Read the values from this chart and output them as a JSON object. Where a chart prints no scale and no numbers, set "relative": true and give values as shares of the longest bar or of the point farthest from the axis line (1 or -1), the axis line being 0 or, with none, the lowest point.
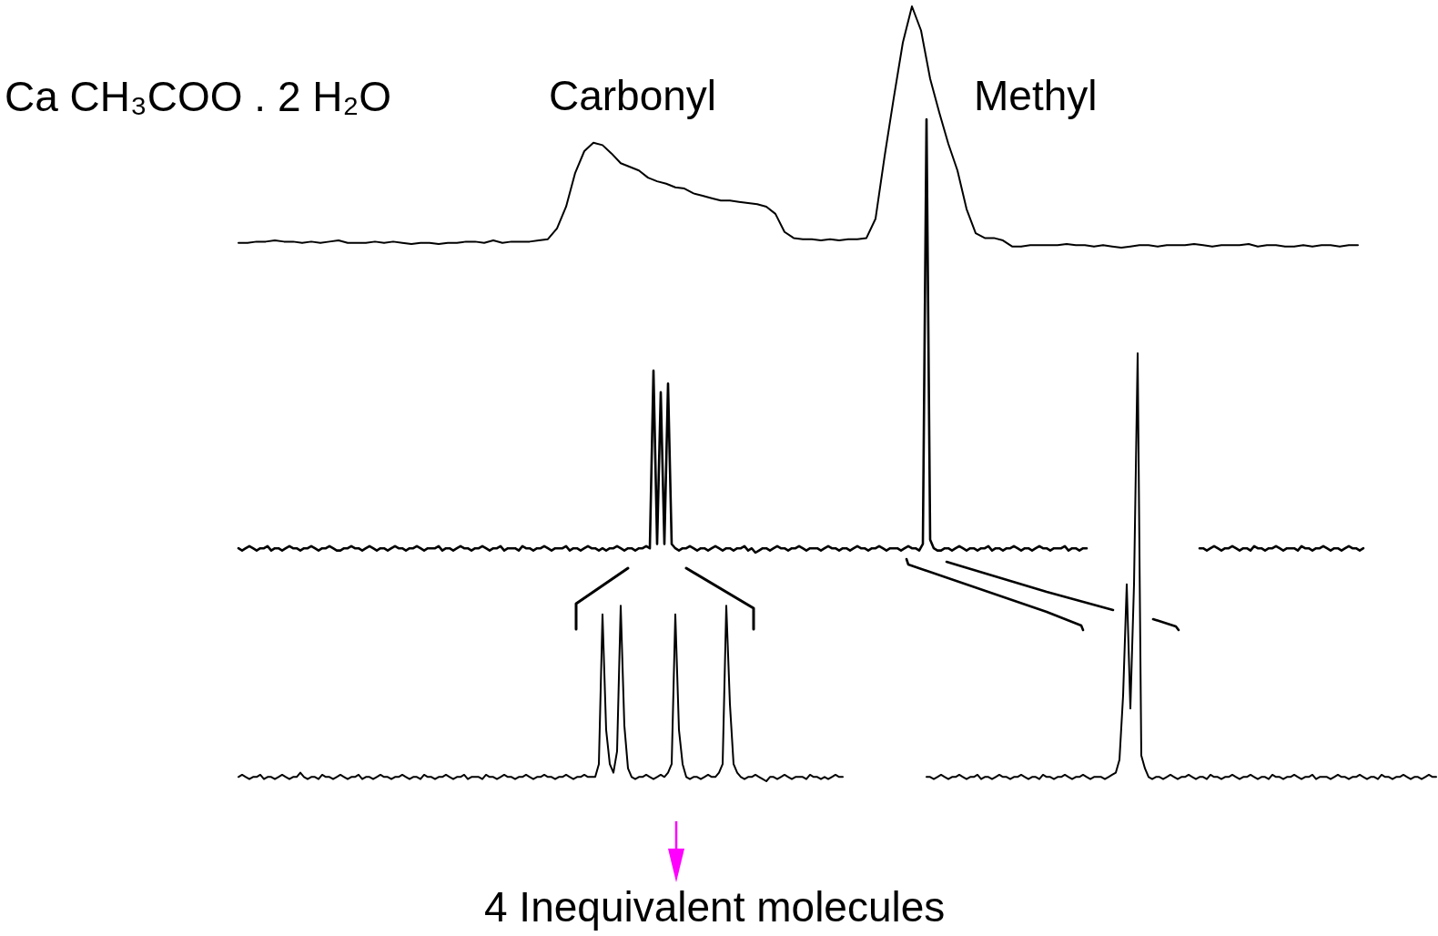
{
  "chart_data": [
    {
      "type": "line",
      "relative": true,
      "title": "Ca CH₃COO . 2 H₂O",
      "annotations": [
        "Carbonyl",
        "Methyl"
      ],
      "color": "#000000",
      "categories": [
        null,
        null,
        null,
        null,
        null,
        null,
        null,
        null,
        null,
        null,
        null,
        null,
        null,
        null,
        null,
        null,
        null,
        null,
        null,
        null,
        null,
        null,
        null,
        null,
        null,
        null,
        null,
        null,
        null,
        null,
        null,
        null,
        null,
        null,
        null,
        null,
        null,
        null,
        null,
        null,
        null,
        null,
        null,
        null,
        null,
        null,
        null,
        null,
        null,
        null,
        null,
        null,
        null,
        null,
        null,
        null,
        null,
        null,
        null,
        null,
        null,
        null,
        null,
        null,
        null,
        null,
        null,
        null,
        null,
        null,
        null,
        null,
        null,
        null,
        null,
        null,
        null,
        null,
        null,
        null,
        null,
        null,
        null,
        null,
        null,
        null,
        null,
        null,
        null,
        null,
        null,
        null,
        null,
        null,
        null,
        null,
        null,
        null,
        null,
        null,
        null,
        null,
        null,
        null,
        null,
        null,
        null,
        null,
        null,
        null,
        null,
        null,
        null,
        null,
        null,
        null,
        null,
        null,
        null,
        null,
        null,
        null,
        null,
        null
      ],
      "values": [
        0.02,
        0.02,
        0.025,
        0.025,
        0.03,
        0.025,
        0.025,
        0.02,
        0.025,
        0.02,
        0.025,
        0.03,
        0.02,
        0.02,
        0.02,
        0.025,
        0.02,
        0.025,
        0.02,
        0.015,
        0.02,
        0.02,
        0.015,
        0.02,
        0.02,
        0.025,
        0.025,
        0.02,
        0.03,
        0.02,
        0.025,
        0.025,
        0.025,
        0.03,
        0.035,
        0.08,
        0.17,
        0.31,
        0.4,
        0.435,
        0.425,
        0.39,
        0.35,
        0.335,
        0.32,
        0.29,
        0.275,
        0.265,
        0.25,
        0.245,
        0.225,
        0.215,
        0.205,
        0.195,
        0.195,
        0.19,
        0.185,
        0.18,
        0.17,
        0.14,
        0.065,
        0.04,
        0.035,
        0.035,
        0.03,
        0.035,
        0.03,
        0.035,
        0.035,
        0.04,
        0.12,
        0.38,
        0.62,
        0.85,
        1,
        0.9,
        0.7,
        0.56,
        0.43,
        0.32,
        0.16,
        0.06,
        0.04,
        0.04,
        0.03,
        0.005,
        0.005,
        0.01,
        0.01,
        0.01,
        0.01,
        0.015,
        0.01,
        0.01,
        0.005,
        0.01,
        0.005,
        0,
        0.005,
        0.01,
        0.01,
        0.005,
        0.01,
        0.01,
        0.01,
        0.015,
        0.01,
        0.005,
        0.01,
        0.01,
        0.01,
        0.015,
        0.005,
        0.01,
        0.01,
        0.005,
        0.005,
        0.01,
        0.005,
        0.01,
        0.01,
        0.005,
        0.01,
        0.01
      ]
    },
    {
      "type": "line",
      "relative": true,
      "categories": [
        null,
        null,
        null,
        null,
        null,
        null,
        null,
        null,
        null,
        null,
        null,
        null,
        null,
        null,
        null,
        null,
        null,
        null,
        null,
        null,
        null,
        null,
        null,
        null,
        null,
        null,
        null,
        null,
        null,
        null,
        null,
        null,
        null,
        null,
        null,
        null,
        null,
        null,
        null,
        null,
        null,
        null,
        null,
        null,
        null,
        null,
        null,
        null,
        null,
        null,
        null,
        null,
        null,
        null,
        null,
        null,
        null,
        null,
        null,
        null,
        null,
        null,
        null,
        null,
        null,
        null,
        null,
        null,
        null,
        null,
        null,
        null,
        null,
        null,
        null,
        null,
        null,
        null,
        null,
        null,
        null,
        null,
        null,
        null,
        null,
        null,
        null,
        null,
        null,
        null,
        null,
        null,
        null,
        null,
        null,
        null,
        null,
        null,
        null,
        null,
        null,
        null,
        null,
        null,
        null,
        null,
        null,
        null,
        null,
        null,
        null,
        null,
        null,
        null,
        null,
        null,
        null,
        null,
        null,
        null,
        null,
        null,
        null,
        null,
        null,
        null,
        null,
        null,
        null,
        null,
        null,
        null,
        null,
        null,
        null,
        null,
        null,
        null,
        null,
        null,
        null,
        null,
        null,
        null,
        null,
        null,
        null,
        null,
        null,
        null,
        null,
        null,
        null,
        null,
        null,
        null,
        null,
        null,
        null,
        null,
        null,
        null,
        null,
        null,
        null,
        null,
        null,
        null,
        null,
        null,
        null,
        null,
        null,
        null,
        null,
        null,
        null,
        null,
        null,
        null,
        null,
        null,
        null,
        null,
        null,
        null,
        null,
        null,
        null,
        null,
        null,
        null,
        null,
        null,
        null,
        null,
        null,
        null,
        null,
        null,
        null,
        null,
        null,
        null,
        null,
        null,
        null,
        null,
        null,
        null,
        null,
        null,
        null,
        null,
        null,
        null,
        null,
        null,
        null,
        null,
        null,
        null,
        null,
        null,
        null,
        null,
        null,
        null,
        null,
        null,
        null,
        null,
        null,
        null,
        null,
        null,
        null,
        null,
        null,
        null,
        null,
        null,
        null,
        null,
        null,
        null,
        null,
        null,
        null,
        null,
        null,
        null,
        null,
        null,
        null,
        null,
        null,
        null,
        null,
        null,
        null,
        null,
        null,
        null,
        null,
        null,
        null,
        null,
        null,
        null,
        null,
        null,
        null,
        null,
        null,
        null,
        null,
        null,
        null,
        null,
        null,
        null,
        null,
        null,
        null,
        null,
        null,
        null,
        null,
        null,
        null,
        null,
        null,
        null,
        null,
        null,
        null,
        null,
        null,
        null,
        null,
        null,
        null,
        null,
        null,
        null,
        null,
        null,
        null,
        null
      ],
      "series": [
        {
          "color": "#000000",
          "values": [
            0.01,
            0.005,
            0.01,
            0.015,
            0.01,
            0.005,
            0.01,
            0.01,
            0.015,
            0.005,
            0.01,
            0.01,
            0.005,
            0.01,
            0.015,
            0.01,
            0.01,
            0.005,
            0.01,
            0.01,
            0.015,
            0.01,
            0.005,
            0.01,
            0.01,
            0.015,
            0.01,
            0.005,
            0.005,
            0.01,
            0.01,
            0.015,
            0.01,
            0.01,
            0.005,
            0.01,
            0.015,
            0.01,
            0.005,
            0.01,
            0.01,
            0.005,
            0.01,
            0.015,
            0.01,
            0.01,
            0.005,
            0.01,
            0.01,
            0.015,
            0.01,
            0.005,
            0.01,
            0.01,
            0.01,
            0.015,
            0.005,
            0.01,
            0.01,
            0.005,
            0.01,
            0.015,
            0.01,
            0.01,
            0.005,
            0.01,
            0.01,
            0.015,
            0.01,
            0.005,
            0.01,
            0.01,
            0.015,
            0.005,
            0.01,
            0.01,
            0.01,
            0.005,
            0.015,
            0.01,
            0.01,
            0.005,
            0.01,
            0.01,
            0.015,
            0.01,
            0.005,
            0.01,
            0.01,
            0.01,
            0.015,
            0.005,
            0.01,
            0.01,
            0.005,
            0.01,
            0.015,
            0.01,
            0.01,
            0.005,
            0.01,
            0.005,
            0.01,
            0.01,
            0.015,
            0.01,
            0.005,
            0.01,
            0.01,
            0.005,
            0.01,
            0.01,
            0.015,
            0.01,
            0.42,
            0.02,
            0.37,
            0.02,
            0.39,
            0.02,
            0.01,
            0.005,
            0.01,
            0.01,
            0.015,
            0.01,
            0.005,
            0.01,
            0.01,
            0.005,
            0.01,
            0.015,
            0.01,
            0.005,
            0.01,
            0.01,
            0.005,
            0.01,
            0.01,
            0.015,
            0.005,
            0.01,
            0,
            0.005,
            0.01,
            0.01,
            0.005,
            0.01,
            0.015,
            0.01,
            0.01,
            0.005,
            0.01,
            0.01,
            0.015,
            0.01,
            0.005,
            0.01,
            0.01,
            0.01,
            0.005,
            0.01,
            0.015,
            0.01,
            0.01,
            0.005,
            0.01,
            0.01,
            0.005,
            0.01,
            0.015,
            0.01,
            0.01,
            0.005,
            0.01,
            0.01,
            0.015,
            0.01,
            0.005,
            0.01,
            0.01,
            0.01,
            0.005,
            0.01,
            0.015,
            0.01,
            0.01,
            0.005,
            0.02,
            1,
            0.03,
            0.01,
            0.005,
            0.005,
            0.01,
            0.01,
            0.005,
            0.01,
            0.015,
            0.01,
            0.005,
            0.01,
            0.01,
            0.005,
            0.01,
            0.01,
            0.015,
            0.005,
            0.01,
            0.01,
            0.005,
            0.01,
            0.01,
            0.015,
            0.01,
            0.005,
            0.01,
            0.01,
            0.005,
            0.01,
            0.015,
            0.01,
            0.01,
            0.005,
            0.01,
            0.01,
            0.01,
            0.015,
            0.005,
            0.01,
            0.01,
            0.005,
            0.01,
            0.01,
            null,
            null,
            null,
            null,
            null,
            null,
            null,
            null,
            null,
            null,
            null,
            null,
            null,
            null,
            null,
            null,
            null,
            null,
            null,
            null,
            null,
            null,
            null,
            null,
            null,
            null,
            null,
            null,
            null,
            null,
            null,
            null,
            null,
            null,
            null,
            null,
            null,
            null,
            null,
            null,
            null,
            null,
            null,
            null,
            null,
            null,
            null,
            null,
            null,
            null,
            null,
            null,
            null,
            null,
            null,
            null,
            null,
            null,
            null,
            null,
            null,
            null,
            null,
            null,
            null,
            null,
            null,
            null,
            null,
            null,
            null,
            null,
            null,
            null,
            null,
            null
          ]
        },
        {
          "color": "#000000",
          "values": [
            null,
            null,
            null,
            null,
            null,
            null,
            null,
            null,
            null,
            null,
            null,
            null,
            null,
            null,
            null,
            null,
            null,
            null,
            null,
            null,
            null,
            null,
            null,
            null,
            null,
            null,
            null,
            null,
            null,
            null,
            null,
            null,
            null,
            null,
            null,
            null,
            null,
            null,
            null,
            null,
            null,
            null,
            null,
            null,
            null,
            null,
            null,
            null,
            null,
            null,
            null,
            null,
            null,
            null,
            null,
            null,
            null,
            null,
            null,
            null,
            null,
            null,
            null,
            null,
            null,
            null,
            null,
            null,
            null,
            null,
            null,
            null,
            null,
            null,
            null,
            null,
            null,
            null,
            null,
            null,
            null,
            null,
            null,
            null,
            null,
            null,
            null,
            null,
            null,
            null,
            null,
            null,
            null,
            null,
            null,
            null,
            null,
            null,
            null,
            null,
            null,
            null,
            null,
            null,
            null,
            null,
            null,
            null,
            null,
            null,
            null,
            null,
            null,
            null,
            null,
            null,
            null,
            null,
            null,
            null,
            null,
            null,
            null,
            null,
            null,
            null,
            null,
            null,
            null,
            null,
            null,
            null,
            null,
            null,
            null,
            null,
            null,
            null,
            null,
            null,
            null,
            null,
            null,
            null,
            null,
            null,
            null,
            null,
            null,
            null,
            null,
            null,
            null,
            null,
            null,
            null,
            null,
            null,
            null,
            null,
            null,
            null,
            null,
            null,
            null,
            null,
            null,
            null,
            null,
            null,
            null,
            null,
            null,
            null,
            null,
            null,
            null,
            null,
            null,
            null,
            null,
            null,
            null,
            null,
            null,
            null,
            null,
            null,
            null,
            null,
            null,
            null,
            null,
            null,
            null,
            null,
            null,
            null,
            null,
            null,
            null,
            null,
            null,
            null,
            null,
            null,
            null,
            null,
            null,
            null,
            null,
            null,
            null,
            null,
            null,
            null,
            null,
            null,
            null,
            null,
            null,
            null,
            null,
            null,
            null,
            null,
            null,
            null,
            null,
            null,
            null,
            null,
            null,
            null,
            null,
            null,
            null,
            null,
            null,
            null,
            null,
            null,
            null,
            null,
            null,
            null,
            null,
            null,
            null,
            null,
            null,
            null,
            null,
            null,
            null,
            null,
            null,
            null,
            null,
            null,
            null,
            null,
            null,
            null,
            0.01,
            0.01,
            0.005,
            0.01,
            0.015,
            0.01,
            0.005,
            0.01,
            0.01,
            0.015,
            0.01,
            0.005,
            0.01,
            0.01,
            0.005,
            0.015,
            0.01,
            0.01,
            0.005,
            0.01,
            0.01,
            0.015,
            0.01,
            0.005,
            0.01,
            0.01,
            0.01,
            0.005,
            0.015,
            0.01,
            0.01,
            0.005,
            0.01,
            0.01,
            0.015,
            0.01,
            0.005,
            0.01,
            0.01,
            0.005,
            0.01,
            0.015,
            0.01,
            0.01,
            0.005,
            0.01
          ]
        }
      ]
    },
    {
      "type": "line",
      "relative": true,
      "annotations": [
        "4 Inequivalent molecules"
      ],
      "categories": [
        null,
        null,
        null,
        null,
        null,
        null,
        null,
        null,
        null,
        null,
        null,
        null,
        null,
        null,
        null,
        null,
        null,
        null,
        null,
        null,
        null,
        null,
        null,
        null,
        null,
        null,
        null,
        null,
        null,
        null,
        null,
        null,
        null,
        null,
        null,
        null,
        null,
        null,
        null,
        null,
        null,
        null,
        null,
        null,
        null,
        null,
        null,
        null,
        null,
        null,
        null,
        null,
        null,
        null,
        null,
        null,
        null,
        null,
        null,
        null,
        null,
        null,
        null,
        null,
        null,
        null,
        null,
        null,
        null,
        null,
        null,
        null,
        null,
        null,
        null,
        null,
        null,
        null,
        null,
        null,
        null,
        null,
        null,
        null,
        null,
        null,
        null,
        null,
        null,
        null,
        null,
        null,
        null,
        null,
        null,
        null,
        null,
        null,
        null,
        null,
        null,
        null,
        null,
        null,
        null,
        null,
        null,
        null,
        null,
        null,
        null,
        null,
        null,
        null,
        null,
        null,
        null,
        null,
        null,
        null,
        null,
        null,
        null,
        null,
        null,
        null,
        null,
        null,
        null,
        null,
        null,
        null,
        null,
        null,
        null,
        null,
        null,
        null,
        null,
        null,
        null,
        null,
        null,
        null,
        null,
        null,
        null,
        null,
        null,
        null,
        null,
        null,
        null,
        null,
        null,
        null,
        null,
        null,
        null,
        null,
        null,
        null,
        null,
        null,
        null,
        null,
        null,
        null,
        null,
        null,
        null,
        null,
        null,
        null,
        null,
        null,
        null,
        null,
        null,
        null,
        null,
        null,
        null,
        null,
        null,
        null,
        null,
        null,
        null,
        null,
        null,
        null,
        null,
        null,
        null,
        null,
        null,
        null,
        null,
        null,
        null,
        null,
        null,
        null,
        null,
        null,
        null,
        null,
        null,
        null,
        null,
        null,
        null,
        null,
        null,
        null,
        null,
        null,
        null,
        null,
        null,
        null,
        null,
        null,
        null,
        null,
        null,
        null,
        null,
        null,
        null,
        null,
        null,
        null,
        null,
        null,
        null,
        null,
        null,
        null,
        null,
        null,
        null,
        null,
        null,
        null,
        null,
        null,
        null,
        null,
        null,
        null,
        null,
        null,
        null,
        null,
        null,
        null,
        null,
        null,
        null,
        null,
        null,
        null,
        null,
        null,
        null,
        null,
        null,
        null,
        null,
        null,
        null,
        null,
        null,
        null,
        null,
        null,
        null,
        null,
        null,
        null,
        null,
        null,
        null,
        null,
        null,
        null,
        null,
        null,
        null,
        null,
        null,
        null,
        null,
        null,
        null,
        null,
        null,
        null,
        null,
        null,
        null,
        null,
        null,
        null,
        null,
        null,
        null,
        null,
        null,
        null,
        null,
        null,
        null,
        null,
        null,
        null,
        null,
        null,
        null,
        null,
        null,
        null,
        null,
        null,
        null,
        null,
        null,
        null
      ],
      "series": [
        {
          "color": "#000000",
          "values": [
            0.01,
            0.015,
            0.01,
            0.005,
            0.01,
            0.01,
            0.015,
            0.005,
            0.01,
            0.01,
            0.005,
            0.01,
            0.015,
            0.01,
            0.005,
            0.01,
            0.01,
            0.02,
            0.01,
            0.005,
            0.01,
            0.01,
            0.005,
            0.015,
            0.01,
            0.01,
            0.005,
            0.01,
            0.015,
            0.01,
            0.005,
            0.01,
            0.01,
            0.015,
            0.005,
            0.01,
            0.01,
            0.005,
            0.01,
            0.015,
            0.01,
            0.01,
            0.005,
            0.01,
            0.01,
            0.015,
            0.01,
            0.005,
            0.01,
            0.01,
            0.005,
            0.015,
            0.01,
            0.01,
            0.005,
            0.01,
            0.01,
            0.015,
            0.01,
            0.005,
            0.01,
            0.01,
            0.015,
            0.005,
            0.01,
            0.01,
            0.01,
            0.005,
            0.015,
            0.01,
            0.01,
            0.005,
            0.01,
            0.015,
            0.01,
            0.01,
            0.005,
            0.01,
            0.01,
            0.015,
            0.01,
            0.005,
            0.01,
            0.01,
            0.015,
            0.01,
            0.01,
            0.005,
            0.01,
            0.01,
            0.015,
            0.01,
            0.005,
            0.01,
            0.01,
            0.015,
            0.01,
            0.01,
            0.01,
            0.04,
            0.39,
            0.12,
            0.04,
            0.02,
            0.07,
            0.41,
            0.13,
            0.03,
            0.01,
            0.005,
            0.01,
            0.01,
            0.015,
            0.01,
            0.005,
            0.01,
            0.015,
            0.01,
            0.02,
            0.04,
            0.39,
            0.12,
            0.04,
            0.01,
            0.005,
            0.01,
            0.01,
            0.005,
            0.01,
            0.015,
            0.01,
            0.01,
            0.02,
            0.04,
            0.41,
            0.18,
            0.04,
            0.02,
            0.01,
            0.005,
            0.01,
            0.01,
            0.015,
            0.01,
            0.005,
            0,
            0.01,
            0.01,
            0.005,
            0.01,
            0.015,
            0.01,
            0.005,
            0.01,
            0.01,
            0.01,
            0.005,
            0.015,
            0.01,
            0.01,
            0.005,
            0.01,
            0.005,
            0.01,
            0.015,
            0.01,
            0.01,
            null,
            null,
            null,
            null,
            null,
            null,
            null,
            null,
            null,
            null,
            null,
            null,
            null,
            null,
            null,
            null,
            null,
            null,
            null,
            null,
            null,
            null,
            null,
            null,
            null,
            null,
            null,
            null,
            null,
            null,
            null,
            null,
            null,
            null,
            null,
            null,
            null,
            null,
            null,
            null,
            null,
            null,
            null,
            null,
            null,
            null,
            null,
            null,
            null,
            null,
            null,
            null,
            null,
            null,
            null,
            null,
            null,
            null,
            null,
            null,
            null,
            null,
            null,
            null,
            null,
            null,
            null,
            null,
            null,
            null,
            null,
            null,
            null,
            null,
            null,
            null,
            null,
            null,
            null,
            null,
            null,
            null,
            null,
            null,
            null,
            null,
            null,
            null,
            null,
            null,
            null,
            null,
            null,
            null,
            null,
            null,
            null,
            null,
            null,
            null,
            null,
            null,
            null,
            null,
            null,
            null,
            null,
            null,
            null,
            null,
            null,
            null,
            null,
            null,
            null,
            null,
            null,
            null,
            null,
            null,
            null,
            null,
            null,
            null,
            null,
            null,
            null,
            null,
            null,
            null,
            null,
            null,
            null,
            null,
            null,
            null,
            null,
            null,
            null,
            null,
            null,
            null,
            null,
            null,
            null,
            null,
            null,
            null,
            null,
            null,
            null,
            null,
            null,
            null,
            null,
            null,
            null,
            null,
            null,
            null,
            null,
            null,
            null
          ]
        },
        {
          "color": "#000000",
          "values": [
            null,
            null,
            null,
            null,
            null,
            null,
            null,
            null,
            null,
            null,
            null,
            null,
            null,
            null,
            null,
            null,
            null,
            null,
            null,
            null,
            null,
            null,
            null,
            null,
            null,
            null,
            null,
            null,
            null,
            null,
            null,
            null,
            null,
            null,
            null,
            null,
            null,
            null,
            null,
            null,
            null,
            null,
            null,
            null,
            null,
            null,
            null,
            null,
            null,
            null,
            null,
            null,
            null,
            null,
            null,
            null,
            null,
            null,
            null,
            null,
            null,
            null,
            null,
            null,
            null,
            null,
            null,
            null,
            null,
            null,
            null,
            null,
            null,
            null,
            null,
            null,
            null,
            null,
            null,
            null,
            null,
            null,
            null,
            null,
            null,
            null,
            null,
            null,
            null,
            null,
            null,
            null,
            null,
            null,
            null,
            null,
            null,
            null,
            null,
            null,
            null,
            null,
            null,
            null,
            null,
            null,
            null,
            null,
            null,
            null,
            null,
            null,
            null,
            null,
            null,
            null,
            null,
            null,
            null,
            null,
            null,
            null,
            null,
            null,
            null,
            null,
            null,
            null,
            null,
            null,
            null,
            null,
            null,
            null,
            null,
            null,
            null,
            null,
            null,
            null,
            null,
            null,
            null,
            null,
            null,
            null,
            null,
            null,
            null,
            null,
            null,
            null,
            null,
            null,
            null,
            null,
            null,
            null,
            null,
            null,
            null,
            null,
            null,
            null,
            null,
            null,
            null,
            null,
            null,
            null,
            null,
            null,
            null,
            null,
            null,
            null,
            null,
            null,
            null,
            null,
            null,
            null,
            null,
            null,
            null,
            null,
            null,
            null,
            null,
            0.01,
            0.01,
            0.005,
            0.01,
            0.015,
            0.01,
            0.005,
            0.01,
            0.01,
            0.015,
            0.01,
            0.005,
            0.01,
            0.01,
            0.015,
            0.005,
            0.01,
            0.01,
            0.005,
            0.01,
            0.015,
            0.01,
            0.01,
            0.005,
            0.01,
            0.01,
            0.015,
            0.01,
            0.005,
            0.01,
            0.01,
            0.005,
            0.015,
            0.01,
            0.01,
            0.005,
            0.01,
            0.01,
            0.015,
            0.01,
            0.005,
            0.01,
            0.01,
            0.015,
            0.01,
            0.005,
            0.01,
            0.01,
            0.01,
            0.005,
            0.01,
            0.015,
            0.02,
            0.05,
            0.2,
            0.46,
            0.17,
            0.46,
            1,
            0.06,
            0.03,
            0.01,
            0.005,
            0.01,
            0.01,
            0.005,
            0.01,
            0.015,
            0.01,
            0.005,
            0.01,
            0.01,
            0.015,
            0.01,
            0.005,
            0.01,
            0.01,
            0.005,
            0.015,
            0.01,
            0.01,
            0.005,
            0.01,
            0.01,
            0.015,
            0.01,
            0.005,
            0.01,
            0.01,
            0.015,
            0.01,
            0.005,
            0.01,
            0.01,
            0.005,
            0.015,
            0.01,
            0.01,
            0.005,
            0.01,
            0.01,
            0.015,
            0.01,
            0.005,
            0.01,
            0.01,
            0.015,
            0.005,
            0.01,
            0.01,
            0.01,
            0.005,
            0.01,
            0.015,
            0.01,
            0.01,
            0.005,
            0.01,
            0.01,
            0.015,
            0.01,
            0.005,
            0.01,
            0.01,
            0.005,
            0.015,
            0.01,
            0.01,
            0.005,
            0.01,
            0.01,
            0.015,
            0.01,
            0.005,
            0.01,
            0.01,
            0.005,
            0.01,
            0.015,
            0.01,
            0.01
          ]
        }
      ]
    }
  ]
}
